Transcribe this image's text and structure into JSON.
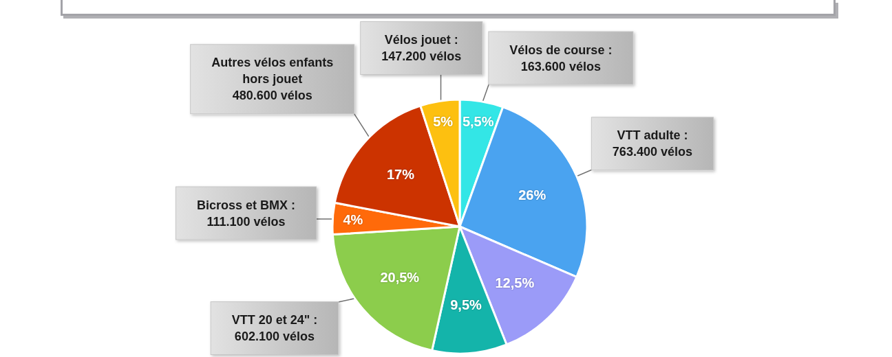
{
  "chart_data": {
    "type": "pie",
    "categories": [
      "Vélos de course :\n163.600 vélos",
      "VTT adulte :\n763.400 vélos",
      null,
      null,
      "VTT 20 et 24\" :\n602.100 vélos",
      "Bicross et BMX :\n111.100 vélos",
      "Autres vélos enfants\nhors jouet\n480.600 vélos",
      "Vélos jouet :\n147.200 vélos"
    ],
    "values": [
      5.5,
      26,
      12.5,
      9.5,
      20.5,
      4,
      17,
      5
    ],
    "colors": [
      "#33e6e6",
      "#4aa3f0",
      "#9b9bf8",
      "#14b4aa",
      "#8ccd4c",
      "#ff6a0a",
      "#cc3300",
      "#fdc010"
    ],
    "value_labels": [
      "5,5%",
      "26%",
      "12,5%",
      "9,5%",
      "20,5%",
      "4%",
      "17%",
      "5%"
    ]
  }
}
